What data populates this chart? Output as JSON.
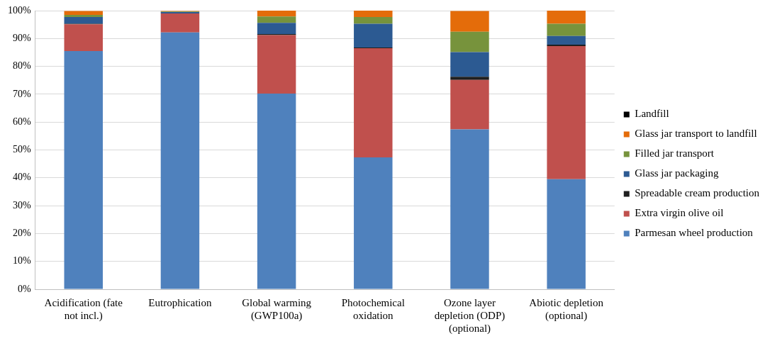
{
  "chart_data": {
    "type": "bar",
    "stacked": true,
    "categories": [
      "Acidification (fate not incl.)",
      "Eutrophication",
      "Global warming (GWP100a)",
      "Photochemical oxidation",
      "Ozone layer depletion (ODP) (optional)",
      "Abiotic depletion (optional)"
    ],
    "series": [
      {
        "name": "Parmesan wheel production",
        "color": "#4f81bd",
        "values": [
          85.5,
          92.2,
          70.2,
          47.3,
          57.4,
          39.5
        ]
      },
      {
        "name": "Extra virgin olive oil",
        "color": "#c0504d",
        "values": [
          9.6,
          6.8,
          21.0,
          39.2,
          17.7,
          47.8
        ]
      },
      {
        "name": "Spreadable cream production",
        "color": "#1f1f1f",
        "values": [
          0.2,
          null,
          0.4,
          0.3,
          1.2,
          0.5
        ]
      },
      {
        "name": "Glass jar packaging",
        "color": "#2c5a92",
        "values": [
          2.4,
          0.5,
          4.0,
          8.5,
          8.8,
          3.1
        ]
      },
      {
        "name": "Filled jar transport",
        "color": "#77933c",
        "values": [
          0.8,
          0.2,
          2.3,
          2.4,
          7.3,
          4.4
        ]
      },
      {
        "name": "Glass jar transport to landfill",
        "color": "#e46c0a",
        "values": [
          1.4,
          0.2,
          2.1,
          2.3,
          7.5,
          4.7
        ]
      },
      {
        "name": "Landfill",
        "color": "#000000",
        "values": [
          null,
          0.0,
          0.0,
          0.0,
          null,
          0.0
        ]
      }
    ],
    "ylim": [
      0,
      100
    ],
    "yticks": [
      {
        "value": 0,
        "label": "0%"
      },
      {
        "value": 10,
        "label": "10%"
      },
      {
        "value": 20,
        "label": "20%"
      },
      {
        "value": 30,
        "label": "30%"
      },
      {
        "value": 40,
        "label": "40%"
      },
      {
        "value": 50,
        "label": "50%"
      },
      {
        "value": 60,
        "label": "60%"
      },
      {
        "value": 70,
        "label": "70%"
      },
      {
        "value": 80,
        "label": "80%"
      },
      {
        "value": 90,
        "label": "90%"
      },
      {
        "value": 100,
        "label": "100%"
      }
    ],
    "grid": "y",
    "legend": "right"
  }
}
